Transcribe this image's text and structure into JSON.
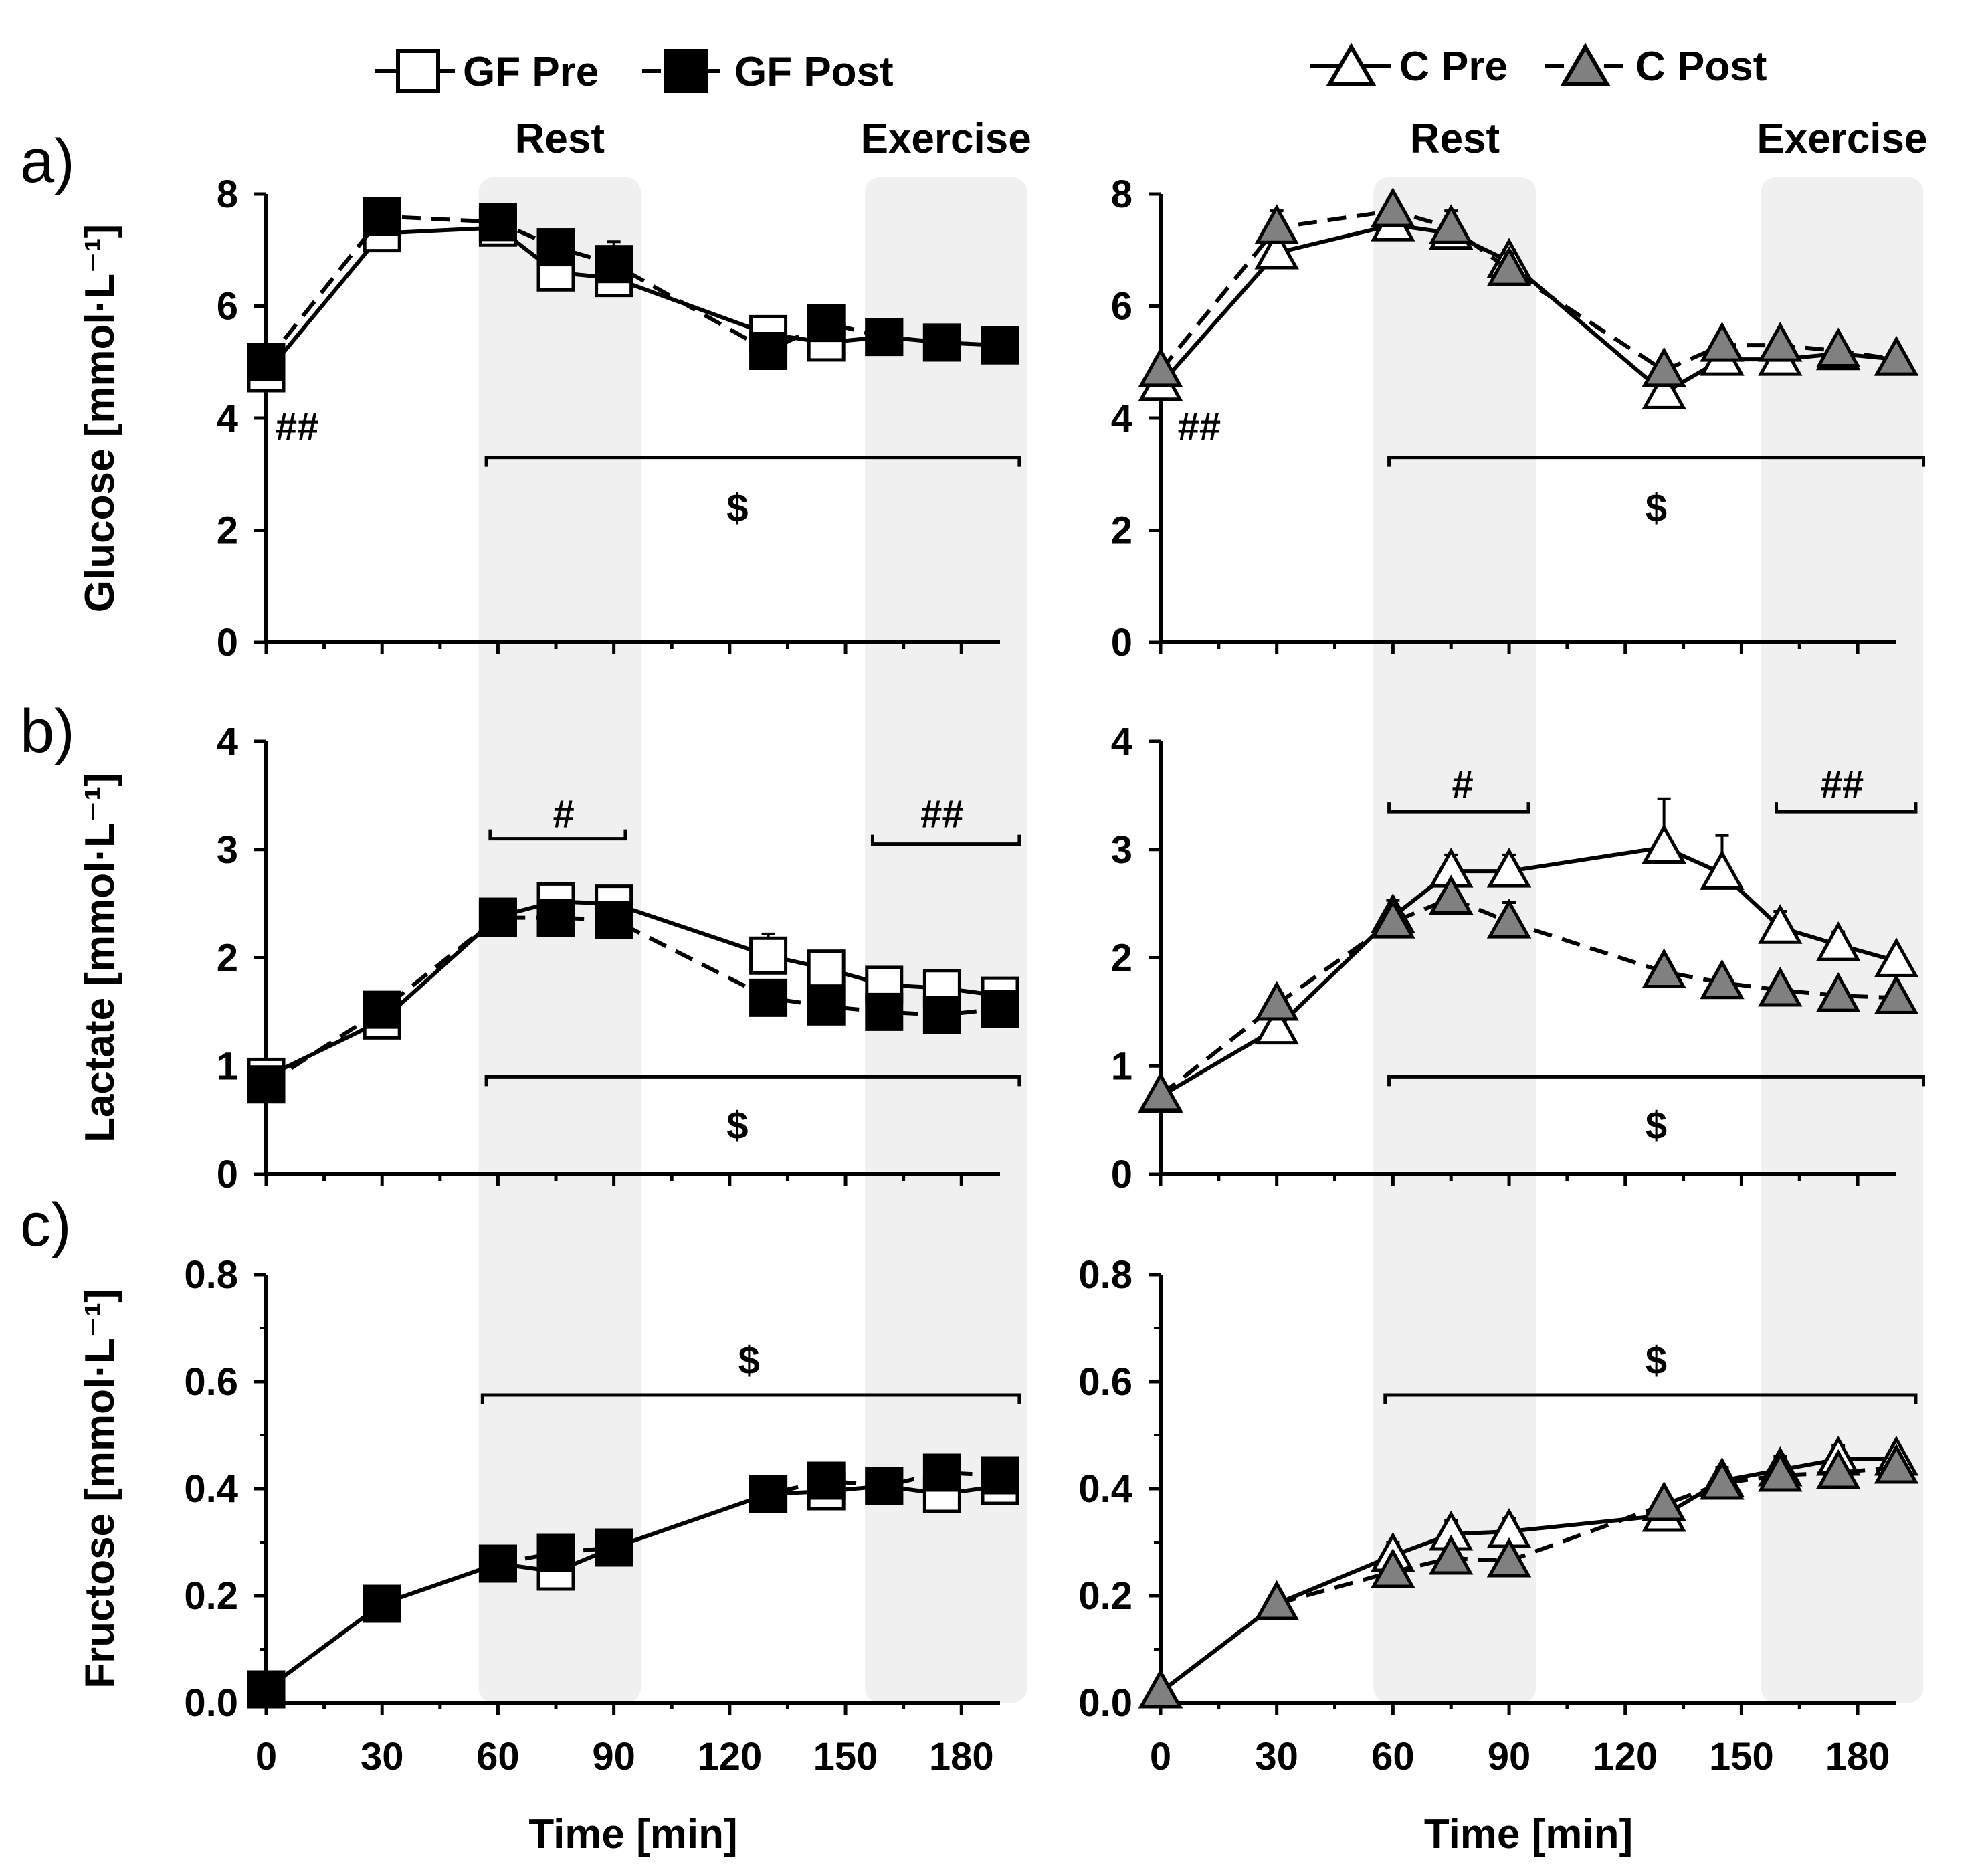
{
  "legend": {
    "gf": [
      {
        "label": "GF Pre",
        "marker": "square",
        "fill": "#ffffff",
        "dash": false
      },
      {
        "label": "GF Post",
        "marker": "square",
        "fill": "#000000",
        "dash": true
      }
    ],
    "c": [
      {
        "label": "C Pre",
        "marker": "triangle",
        "fill": "#ffffff",
        "dash": false
      },
      {
        "label": "C Post",
        "marker": "triangle",
        "fill": "#808080",
        "dash": true
      }
    ]
  },
  "phase_labels": {
    "rest": "Rest",
    "exercise": "Exercise"
  },
  "panel_letters": [
    "a)",
    "b)",
    "c)"
  ],
  "colors": {
    "shade": "#f0f0f0",
    "c_post_fill": "#808080",
    "line": "#000000"
  },
  "chart_data": [
    {
      "type": "line",
      "id": "a-gf",
      "row": 0,
      "col": 0,
      "panel_letter": "a)",
      "ylabel": "Glucose [mmol·L⁻¹]",
      "xlabel": "",
      "ylim": [
        0,
        8
      ],
      "yticks": [
        0,
        2,
        4,
        6,
        8
      ],
      "ytick_labels": [
        "0",
        "2",
        "4",
        "6",
        "8"
      ],
      "xlim": [
        0,
        190
      ],
      "xticks": [
        0,
        30,
        60,
        90,
        120,
        150,
        180
      ],
      "xtick_labels": [],
      "shaded_regions": [
        [
          55,
          97
        ],
        [
          155,
          197
        ]
      ],
      "show_phase_labels": true,
      "x": [
        0,
        30,
        60,
        75,
        90,
        130,
        145,
        160,
        175,
        190
      ],
      "series": [
        {
          "name": "GF Pre",
          "values": [
            4.8,
            7.3,
            7.4,
            6.6,
            6.5,
            5.5,
            5.35,
            5.45,
            5.35,
            5.3
          ],
          "errors": [
            0.2,
            0.15,
            0.2,
            0.2,
            0.25,
            0.15,
            0.15,
            0.1,
            0.1,
            0.1
          ]
        },
        {
          "name": "GF Post",
          "values": [
            5.0,
            7.6,
            7.5,
            7.05,
            6.75,
            5.2,
            5.7,
            5.45,
            5.35,
            5.3
          ],
          "errors": [
            0.15,
            0.2,
            0.15,
            0.2,
            0.4,
            0.15,
            0.2,
            0.1,
            0.1,
            0.1
          ]
        }
      ],
      "annotations": [
        {
          "text": "##",
          "x": 8,
          "y": 3.85
        },
        {
          "text": "$",
          "x": 122,
          "y": 2.4,
          "bracket": [
            57,
            195
          ],
          "bracket_y": 3.3
        }
      ]
    },
    {
      "type": "line",
      "id": "a-c",
      "row": 0,
      "col": 1,
      "panel_letter": "",
      "ylabel": "",
      "xlabel": "",
      "ylim": [
        0,
        8
      ],
      "yticks": [
        0,
        2,
        4,
        6,
        8
      ],
      "ytick_labels": [
        "0",
        "2",
        "4",
        "6",
        "8"
      ],
      "xlim": [
        0,
        190
      ],
      "xticks": [
        0,
        30,
        60,
        90,
        120,
        150,
        180
      ],
      "xtick_labels": [],
      "shaded_regions": [
        [
          55,
          97
        ],
        [
          155,
          197
        ]
      ],
      "show_phase_labels": true,
      "x": [
        0,
        30,
        60,
        75,
        90,
        130,
        145,
        160,
        175,
        190
      ],
      "series": [
        {
          "name": "C Pre",
          "values": [
            4.6,
            6.95,
            7.45,
            7.3,
            6.8,
            4.45,
            5.05,
            5.05,
            5.15,
            5.05
          ],
          "errors": [
            0.2,
            0.2,
            0.35,
            0.3,
            0.2,
            0.3,
            0.15,
            0.15,
            0.1,
            0.1
          ]
        },
        {
          "name": "C Post",
          "values": [
            4.85,
            7.4,
            7.7,
            7.4,
            6.65,
            4.85,
            5.3,
            5.3,
            5.2,
            5.05
          ],
          "errors": [
            0.2,
            0.3,
            0.2,
            0.3,
            0.3,
            0.15,
            0.1,
            0.1,
            0.1,
            0.1
          ]
        }
      ],
      "annotations": [
        {
          "text": "##",
          "x": 10,
          "y": 3.85
        },
        {
          "text": "$",
          "x": 128,
          "y": 2.4,
          "bracket": [
            59,
            197
          ],
          "bracket_y": 3.3
        }
      ]
    },
    {
      "type": "line",
      "id": "b-gf",
      "row": 1,
      "col": 0,
      "panel_letter": "b)",
      "ylabel": "Lactate [mmol·L⁻¹]",
      "xlabel": "",
      "ylim": [
        0,
        4
      ],
      "yticks": [
        0,
        1,
        2,
        3,
        4
      ],
      "ytick_labels": [
        "0",
        "1",
        "2",
        "3",
        "4"
      ],
      "xlim": [
        0,
        190
      ],
      "xticks": [
        0,
        30,
        60,
        90,
        120,
        150,
        180
      ],
      "xtick_labels": [],
      "shaded_regions": [
        [
          55,
          97
        ],
        [
          155,
          197
        ]
      ],
      "show_phase_labels": false,
      "x": [
        0,
        30,
        60,
        75,
        90,
        130,
        145,
        160,
        175,
        190
      ],
      "series": [
        {
          "name": "GF Pre",
          "values": [
            0.9,
            1.42,
            2.38,
            2.52,
            2.5,
            2.02,
            1.9,
            1.75,
            1.72,
            1.65
          ],
          "errors": [
            0.05,
            0.08,
            0.08,
            0.1,
            0.1,
            0.2,
            0.12,
            0.15,
            0.12,
            0.1
          ]
        },
        {
          "name": "GF Post",
          "values": [
            0.83,
            1.52,
            2.37,
            2.37,
            2.35,
            1.63,
            1.55,
            1.5,
            1.47,
            1.53
          ],
          "errors": [
            0.05,
            0.1,
            0.08,
            0.1,
            0.1,
            0.1,
            0.08,
            0.1,
            0.08,
            0.08
          ]
        }
      ],
      "annotations": [
        {
          "text": "#",
          "x": 77,
          "y": 3.33,
          "bracket": [
            58,
            93
          ],
          "bracket_y": 3.1
        },
        {
          "text": "##",
          "x": 175,
          "y": 3.33,
          "bracket": [
            157,
            195
          ],
          "bracket_y": 3.05
        },
        {
          "text": "$",
          "x": 122,
          "y": 0.45,
          "bracket": [
            57,
            195
          ],
          "bracket_y": 0.9
        }
      ]
    },
    {
      "type": "line",
      "id": "b-c",
      "row": 1,
      "col": 1,
      "panel_letter": "",
      "ylabel": "",
      "xlabel": "",
      "ylim": [
        0,
        4
      ],
      "yticks": [
        0,
        1,
        2,
        3,
        4
      ],
      "ytick_labels": [
        "0",
        "1",
        "2",
        "3",
        "4"
      ],
      "xlim": [
        0,
        190
      ],
      "xticks": [
        0,
        30,
        60,
        90,
        120,
        150,
        180
      ],
      "xtick_labels": [],
      "shaded_regions": [
        [
          55,
          97
        ],
        [
          155,
          197
        ]
      ],
      "show_phase_labels": false,
      "x": [
        0,
        30,
        60,
        75,
        90,
        130,
        145,
        160,
        175,
        190
      ],
      "series": [
        {
          "name": "C Pre",
          "values": [
            0.72,
            1.35,
            2.38,
            2.8,
            2.8,
            3.02,
            2.78,
            2.28,
            2.12,
            1.97
          ],
          "errors": [
            0.05,
            0.08,
            0.15,
            0.15,
            0.15,
            0.45,
            0.35,
            0.15,
            0.12,
            0.1
          ]
        },
        {
          "name": "C Post",
          "values": [
            0.73,
            1.57,
            2.33,
            2.55,
            2.33,
            1.87,
            1.77,
            1.7,
            1.65,
            1.63
          ],
          "errors": [
            0.05,
            0.1,
            0.12,
            0.12,
            0.18,
            0.1,
            0.08,
            0.08,
            0.08,
            0.08
          ]
        }
      ],
      "annotations": [
        {
          "text": "#",
          "x": 78,
          "y": 3.6,
          "bracket": [
            59,
            95
          ],
          "bracket_y": 3.35
        },
        {
          "text": "##",
          "x": 176,
          "y": 3.6,
          "bracket": [
            159,
            195
          ],
          "bracket_y": 3.35
        },
        {
          "text": "$",
          "x": 128,
          "y": 0.45,
          "bracket": [
            59,
            197
          ],
          "bracket_y": 0.9
        }
      ]
    },
    {
      "type": "line",
      "id": "c-gf",
      "row": 2,
      "col": 0,
      "panel_letter": "c)",
      "ylabel": "Fructose [mmol·L⁻¹]",
      "xlabel": "Time [min]",
      "ylim": [
        0,
        0.8
      ],
      "yticks": [
        0,
        0.2,
        0.4,
        0.6,
        0.8
      ],
      "ytick_labels": [
        "0.0",
        "0.2",
        "0.4",
        "0.6",
        "0.8"
      ],
      "xlim": [
        0,
        190
      ],
      "xticks": [
        0,
        30,
        60,
        90,
        120,
        150,
        180
      ],
      "xtick_labels": [
        "0",
        "30",
        "60",
        "90",
        "120",
        "150",
        "180"
      ],
      "shaded_regions": [
        [
          55,
          97
        ],
        [
          155,
          197
        ]
      ],
      "show_phase_labels": false,
      "x": [
        0,
        30,
        60,
        75,
        90,
        130,
        145,
        160,
        175,
        190
      ],
      "series": [
        {
          "name": "GF Pre",
          "values": [
            0.025,
            0.185,
            0.26,
            0.245,
            0.29,
            0.39,
            0.395,
            0.405,
            0.39,
            0.405
          ],
          "errors": [
            0.005,
            0.01,
            0.01,
            0.015,
            0.01,
            0.01,
            0.015,
            0.015,
            0.02,
            0.02
          ]
        },
        {
          "name": "GF Post",
          "values": [
            0.025,
            0.185,
            0.26,
            0.28,
            0.29,
            0.39,
            0.415,
            0.405,
            0.43,
            0.425
          ],
          "errors": [
            0.005,
            0.01,
            0.01,
            0.015,
            0.01,
            0.01,
            0.015,
            0.015,
            0.02,
            0.02
          ]
        }
      ],
      "annotations": [
        {
          "text": "$",
          "x": 125,
          "y": 0.64,
          "bracket": [
            56,
            195
          ],
          "bracket_y": 0.575
        }
      ]
    },
    {
      "type": "line",
      "id": "c-c",
      "row": 2,
      "col": 1,
      "panel_letter": "",
      "ylabel": "",
      "xlabel": "Time [min]",
      "ylim": [
        0,
        0.8
      ],
      "yticks": [
        0,
        0.2,
        0.4,
        0.6,
        0.8
      ],
      "ytick_labels": [
        "0.0",
        "0.2",
        "0.4",
        "0.6",
        "0.8"
      ],
      "xlim": [
        0,
        190
      ],
      "xticks": [
        0,
        30,
        60,
        90,
        120,
        150,
        180
      ],
      "xtick_labels": [
        "0",
        "30",
        "60",
        "90",
        "120",
        "150",
        "180"
      ],
      "shaded_regions": [
        [
          55,
          97
        ],
        [
          155,
          197
        ]
      ],
      "show_phase_labels": false,
      "x": [
        0,
        30,
        60,
        75,
        90,
        130,
        145,
        160,
        175,
        190
      ],
      "series": [
        {
          "name": "C Pre",
          "values": [
            0.02,
            0.185,
            0.275,
            0.315,
            0.32,
            0.35,
            0.415,
            0.435,
            0.455,
            0.455
          ],
          "errors": [
            0.005,
            0.015,
            0.025,
            0.025,
            0.025,
            0.015,
            0.025,
            0.025,
            0.025,
            0.02
          ]
        },
        {
          "name": "C Post",
          "values": [
            0.02,
            0.185,
            0.245,
            0.27,
            0.265,
            0.37,
            0.41,
            0.425,
            0.43,
            0.44
          ],
          "errors": [
            0.005,
            0.01,
            0.015,
            0.015,
            0.02,
            0.015,
            0.015,
            0.015,
            0.015,
            0.015
          ]
        }
      ],
      "annotations": [
        {
          "text": "$",
          "x": 128,
          "y": 0.64,
          "bracket": [
            58,
            195
          ],
          "bracket_y": 0.575
        }
      ]
    }
  ]
}
